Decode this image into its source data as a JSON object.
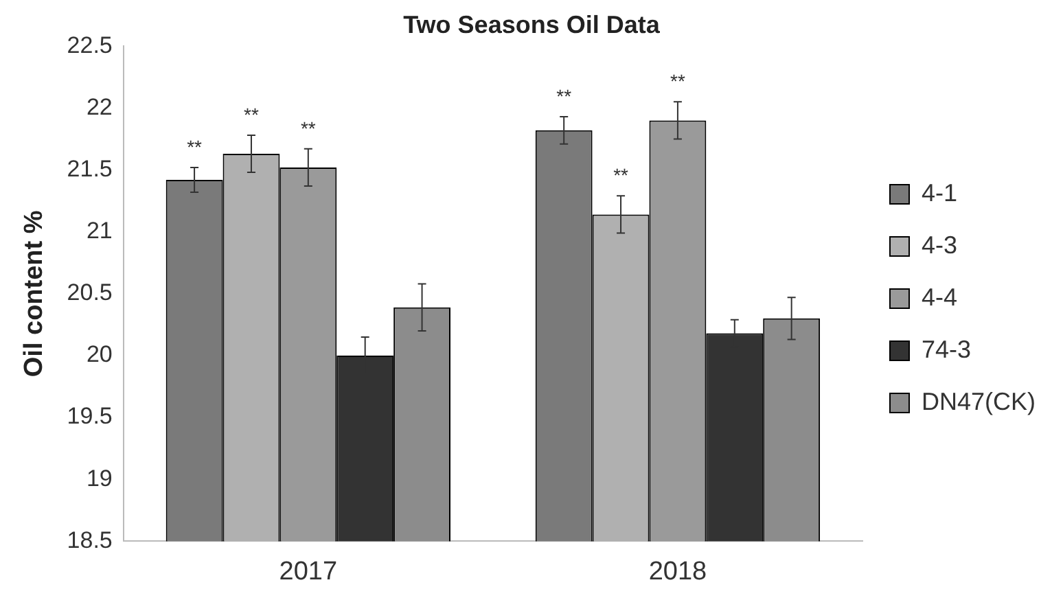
{
  "chart_data": {
    "type": "bar",
    "title": "Two Seasons Oil Data",
    "ylabel": "Oil content %",
    "categories": [
      "2017",
      "2018"
    ],
    "series": [
      {
        "name": "4-1",
        "color": "#7a7a7a",
        "values": [
          21.42,
          21.82
        ],
        "errors": [
          0.1,
          0.11
        ]
      },
      {
        "name": "4-3",
        "color": "#b0b0b0",
        "values": [
          21.63,
          21.14
        ],
        "errors": [
          0.15,
          0.15
        ]
      },
      {
        "name": "4-4",
        "color": "#9a9a9a",
        "values": [
          21.52,
          21.9
        ],
        "errors": [
          0.15,
          0.15
        ]
      },
      {
        "name": "74-3",
        "color": "#333333",
        "values": [
          20.0,
          20.18
        ],
        "errors": [
          0.15,
          0.11
        ]
      },
      {
        "name": "DN47(CK)",
        "color": "#8c8c8c",
        "values": [
          20.39,
          20.3
        ],
        "errors": [
          0.19,
          0.17
        ]
      }
    ],
    "ylim": [
      18.5,
      22.5
    ],
    "yticks": [
      18.5,
      19,
      19.5,
      20,
      20.5,
      21,
      21.5,
      22,
      22.5
    ],
    "grid": false,
    "legend": "right",
    "annotations": [
      "**",
      "**",
      "**",
      "**",
      "**",
      "**"
    ]
  }
}
